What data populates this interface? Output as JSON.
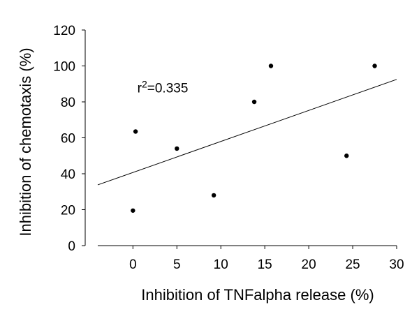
{
  "chart_data": {
    "type": "scatter",
    "title": "",
    "xlabel": "Inhibition of TNFalpha release (%)",
    "ylabel": "Inhibition of chemotaxis (%)",
    "xlim": [
      -4,
      30
    ],
    "ylim": [
      0,
      120
    ],
    "xticks": [
      0,
      5,
      10,
      15,
      20,
      25,
      30
    ],
    "yticks": [
      0,
      20,
      40,
      60,
      80,
      100,
      120
    ],
    "grid": false,
    "legend": "none",
    "points": [
      {
        "x": 0.0,
        "y": 19.5
      },
      {
        "x": 0.3,
        "y": 63.5
      },
      {
        "x": 5.0,
        "y": 54.0
      },
      {
        "x": 9.2,
        "y": 28.0
      },
      {
        "x": 13.8,
        "y": 80.0
      },
      {
        "x": 15.7,
        "y": 100.0
      },
      {
        "x": 24.3,
        "y": 50.0
      },
      {
        "x": 27.5,
        "y": 100.0
      }
    ],
    "trendline": {
      "type": "linear",
      "x": [
        -4,
        30
      ],
      "y": [
        33.8,
        92.5
      ]
    },
    "annotation": {
      "base": "r",
      "sup": "2",
      "rest": "=0.335",
      "x": 0.5,
      "y": 88
    }
  }
}
